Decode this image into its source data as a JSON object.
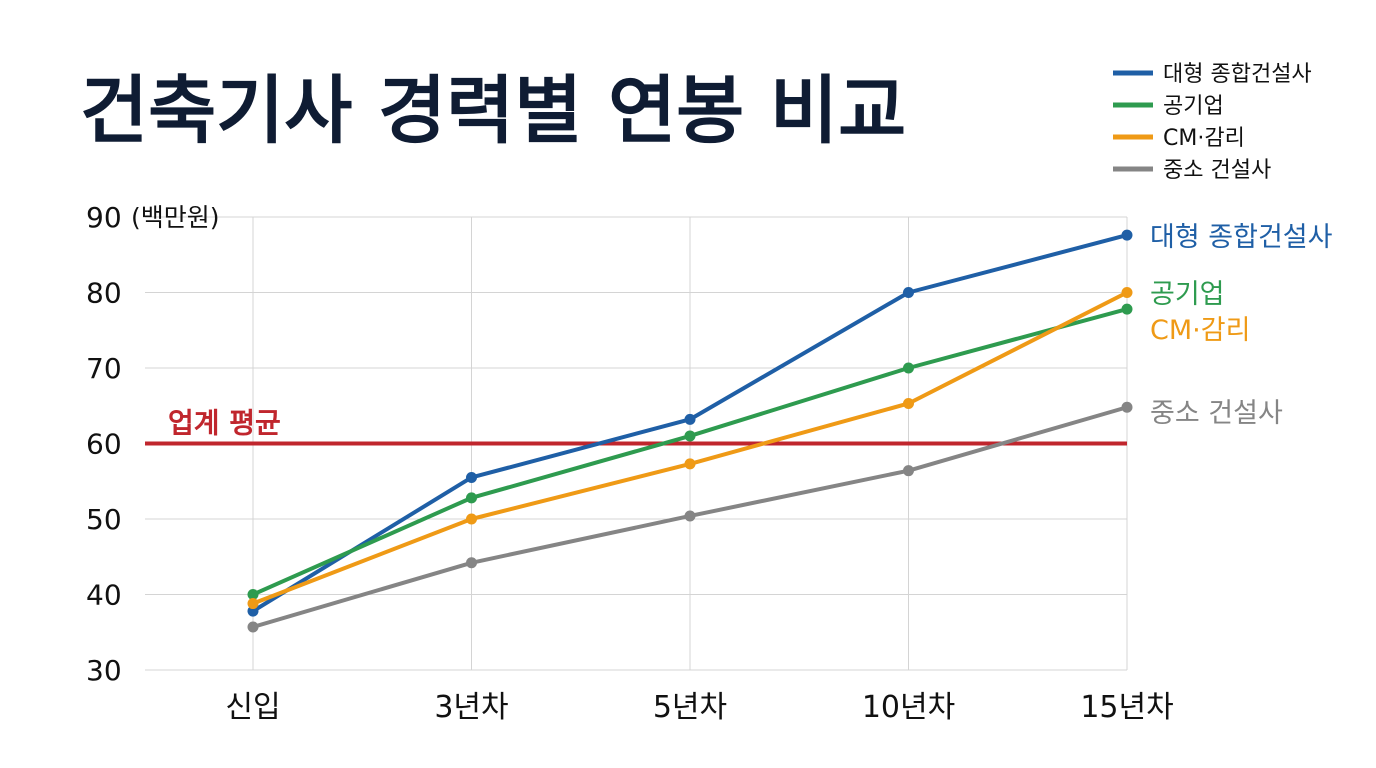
{
  "chart_data": {
    "type": "line",
    "title": "건축기사 경력별 연봉 비교",
    "ylabel_unit": "(백만원)",
    "xlabel": "",
    "categories": [
      "신입",
      "3년차",
      "5년차",
      "10년차",
      "15년차"
    ],
    "ylim": [
      30,
      90
    ],
    "yticks": [
      30,
      40,
      50,
      60,
      70,
      80,
      90
    ],
    "grid": true,
    "legend_position": "top-right",
    "series": [
      {
        "name": "대형 종합건설사",
        "color": "#1f5fa6",
        "values": [
          37.8,
          55.5,
          63.2,
          80.0,
          87.6
        ]
      },
      {
        "name": "공기업",
        "color": "#2e9b4f",
        "values": [
          40.0,
          52.8,
          61.0,
          70.0,
          77.8
        ]
      },
      {
        "name": "CM·감리",
        "color": "#ef9a16",
        "values": [
          38.8,
          50.0,
          57.3,
          65.3,
          80.0
        ]
      },
      {
        "name": "중소 건설사",
        "color": "#858585",
        "values": [
          35.7,
          44.2,
          50.4,
          56.4,
          64.8
        ]
      }
    ],
    "reference_line": {
      "label": "업계 평균",
      "value": 60,
      "color": "#c0262d"
    }
  }
}
